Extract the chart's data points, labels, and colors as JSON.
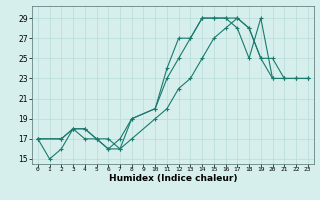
{
  "xlabel": "Humidex (Indice chaleur)",
  "ylabel": "",
  "bg_color": "#d6efec",
  "grid_color": "#b8dcd8",
  "line_color": "#1a7a6e",
  "xlim": [
    -0.5,
    23.5
  ],
  "ylim": [
    14.5,
    30.2
  ],
  "xticks": [
    0,
    1,
    2,
    3,
    4,
    5,
    6,
    7,
    8,
    9,
    10,
    11,
    12,
    13,
    14,
    15,
    16,
    17,
    18,
    19,
    20,
    21,
    22,
    23
  ],
  "yticks": [
    15,
    17,
    19,
    21,
    23,
    25,
    27,
    29
  ],
  "series": [
    {
      "x": [
        0,
        1,
        2,
        3,
        4,
        5,
        6,
        7,
        8,
        10,
        11,
        12,
        13,
        14,
        15,
        16,
        17,
        18,
        19,
        20,
        21,
        22,
        23
      ],
      "y": [
        17,
        15,
        16,
        18,
        17,
        17,
        16,
        17,
        19,
        20,
        24,
        27,
        27,
        29,
        29,
        29,
        28,
        25,
        29,
        23,
        23,
        23,
        23
      ]
    },
    {
      "x": [
        0,
        2,
        3,
        4,
        5,
        6,
        7,
        8,
        10,
        11,
        12,
        13,
        14,
        15,
        16,
        17,
        18,
        19,
        20,
        21,
        22,
        23
      ],
      "y": [
        17,
        17,
        18,
        18,
        17,
        17,
        16,
        19,
        20,
        23,
        25,
        27,
        29,
        29,
        29,
        29,
        28,
        25,
        25,
        23,
        23,
        23
      ]
    },
    {
      "x": [
        0,
        2,
        3,
        4,
        5,
        6,
        7,
        8,
        10,
        11,
        12,
        13,
        14,
        15,
        16,
        17,
        18,
        19,
        20,
        21,
        22,
        23
      ],
      "y": [
        17,
        17,
        18,
        18,
        17,
        16,
        16,
        17,
        19,
        20,
        22,
        23,
        25,
        27,
        28,
        29,
        28,
        25,
        23,
        23,
        23,
        23
      ]
    }
  ]
}
